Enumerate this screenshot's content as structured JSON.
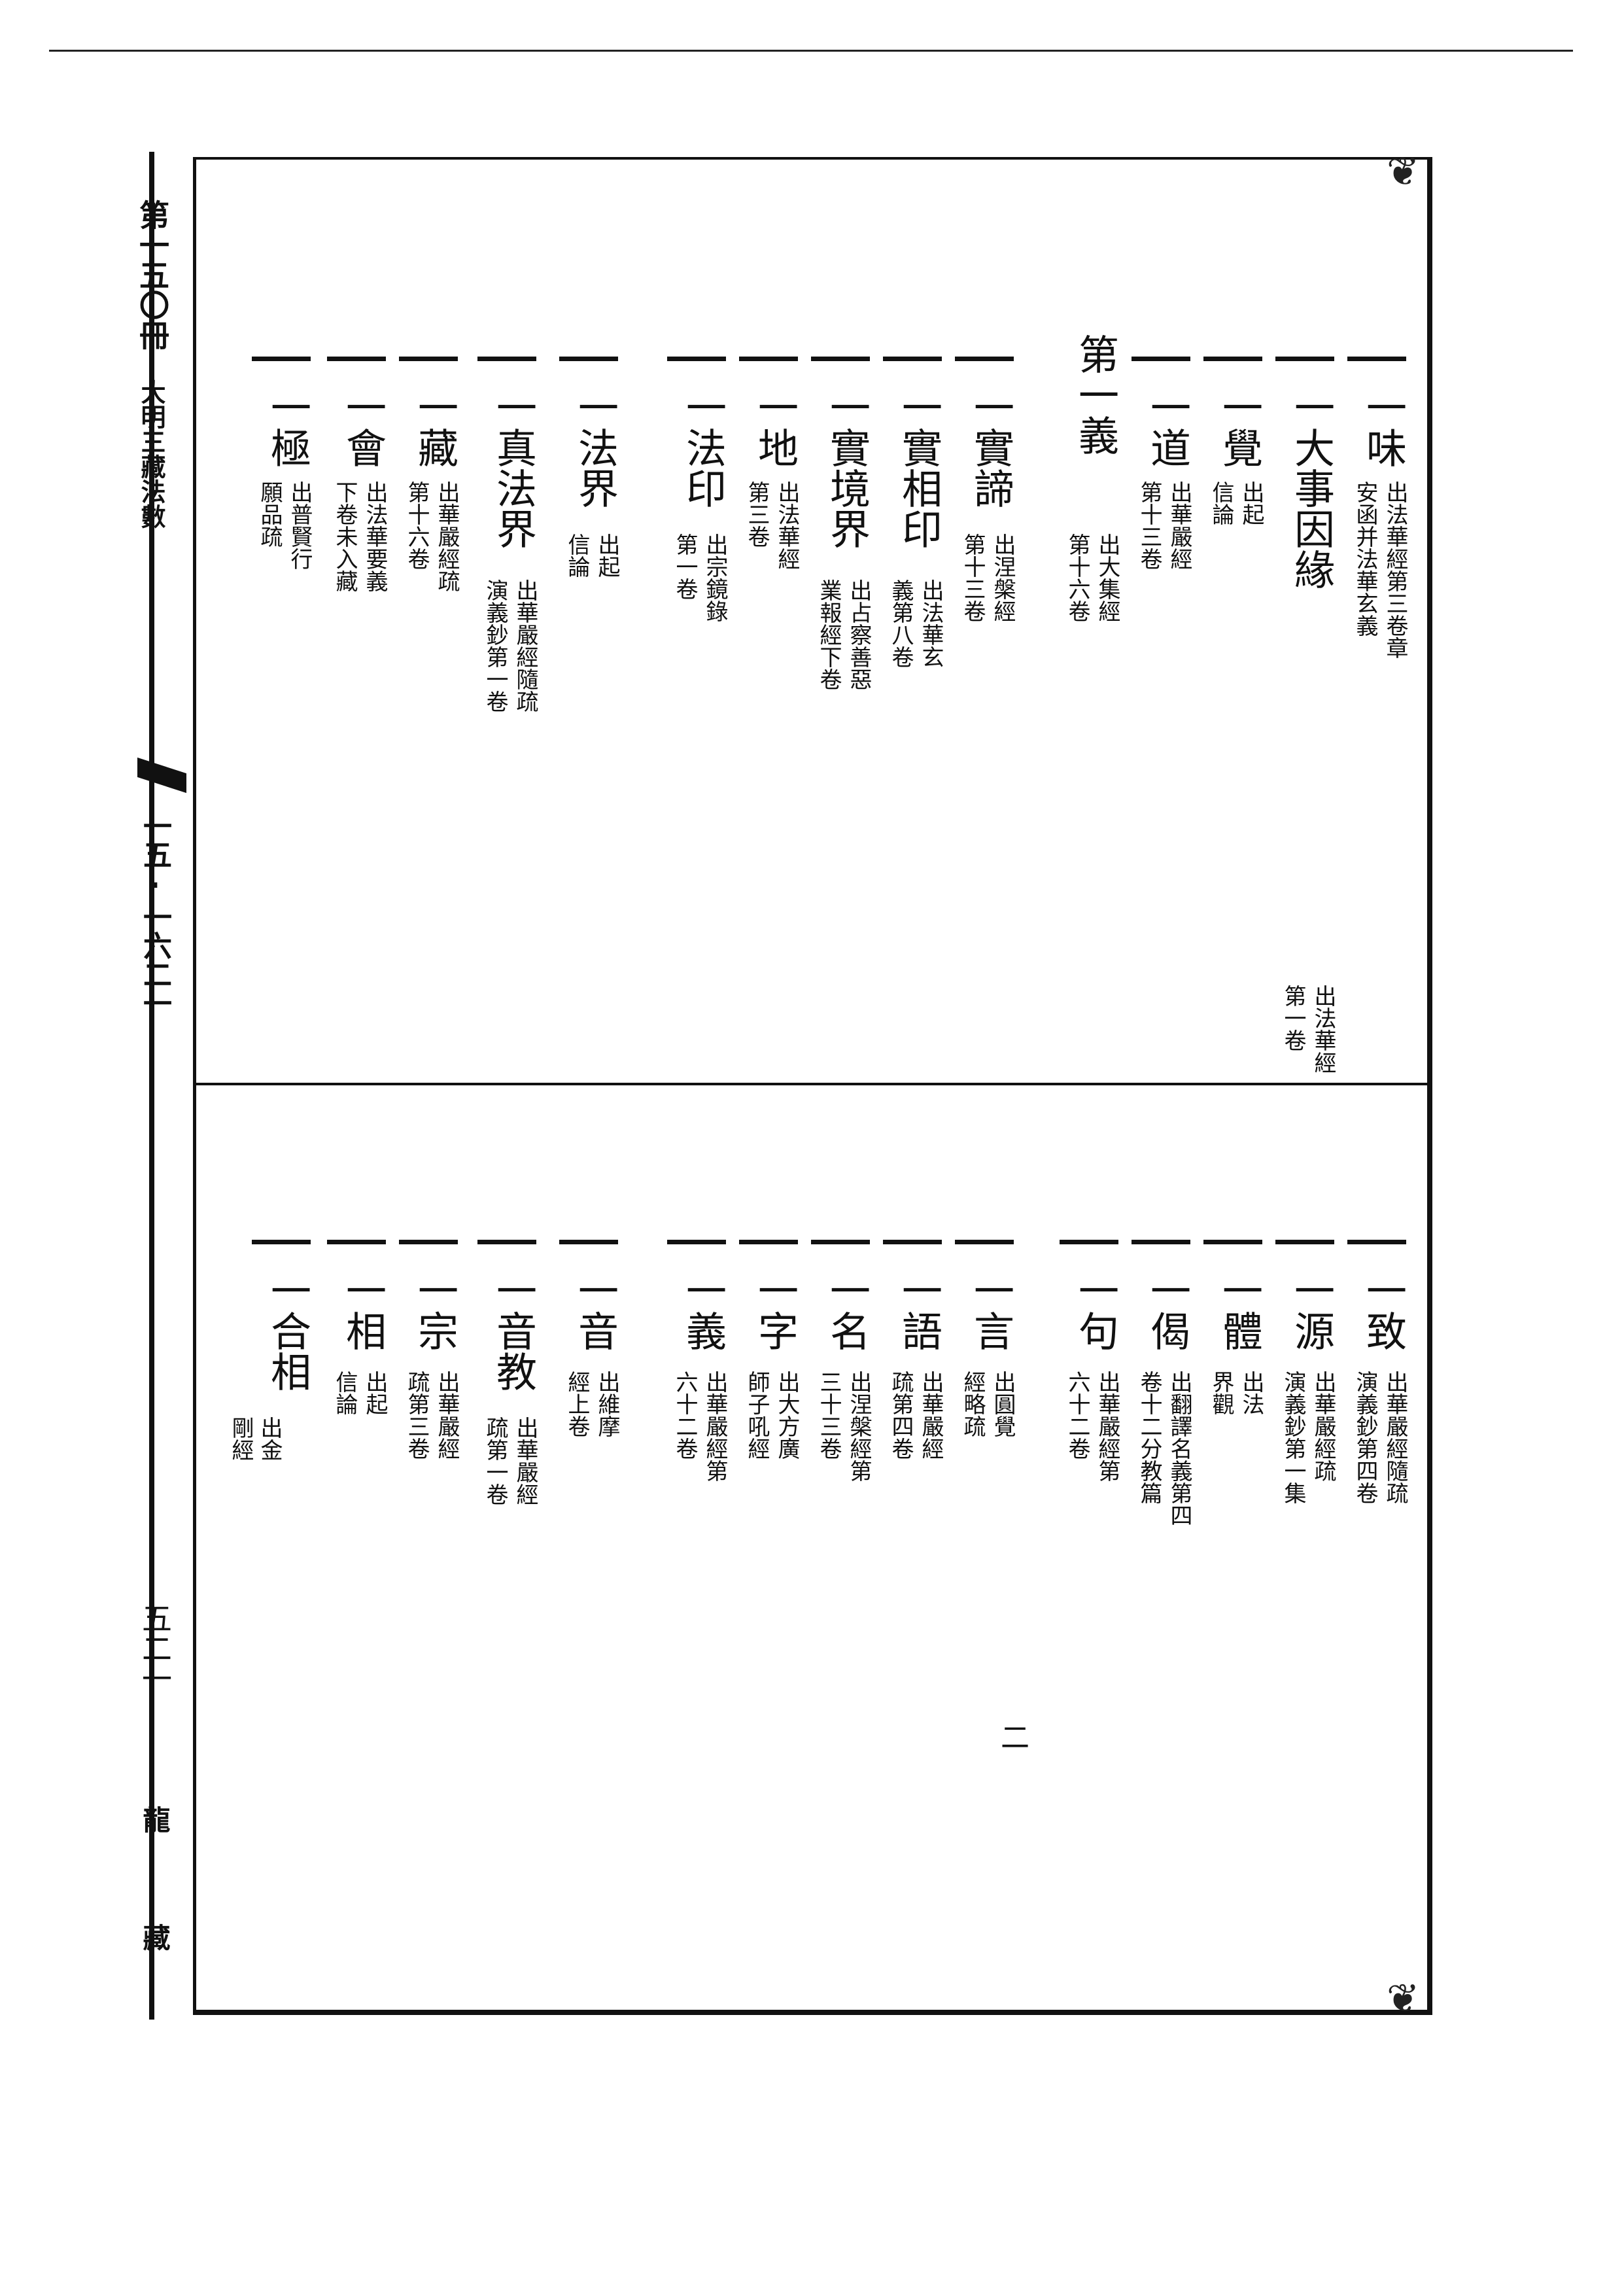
{
  "margin": {
    "volume": "第一五〇冊",
    "title": "大明三藏法數",
    "page_ref": "一五·一六二一",
    "page_number": "五二一",
    "edition_top": "龍",
    "edition_bottom": "藏"
  },
  "footnote_mark": "二",
  "top_section": {
    "entries": [
      {
        "term": "一味",
        "source": [
          "出法華經第三卷章",
          "安函并法華玄義"
        ]
      },
      {
        "term": "一大事因緣",
        "source": [
          "出法華經",
          "第一卷"
        ]
      },
      {
        "term": "一覺",
        "source": [
          "出起",
          "信論"
        ]
      },
      {
        "term": "一道",
        "source": [
          "出華嚴經",
          "第十三卷"
        ]
      },
      {
        "term": "第一義",
        "source": [
          "出大集經",
          "第十六卷"
        ]
      },
      {
        "term": "一實諦",
        "source": [
          "出涅槃經",
          "第十三卷"
        ]
      },
      {
        "term": "一實相印",
        "source": [
          "出法華玄",
          "義第八卷"
        ]
      },
      {
        "term": "一實境界",
        "source": [
          "出占察善惡",
          "業報經下卷"
        ]
      },
      {
        "term": "一地",
        "source": [
          "出法華經",
          "第三卷"
        ]
      },
      {
        "term": "一法印",
        "source": [
          "出宗鏡錄",
          "第一卷"
        ]
      },
      {
        "term": "一法界",
        "source": [
          "出起",
          "信論"
        ]
      },
      {
        "term": "一真法界",
        "source": [
          "出華嚴經隨疏",
          "演義鈔第一卷"
        ]
      },
      {
        "term": "一藏",
        "source": [
          "出華嚴經疏",
          "第十六卷"
        ]
      },
      {
        "term": "一會",
        "source": [
          "出法華要義",
          "下卷未入藏"
        ]
      },
      {
        "term": "一極",
        "source": [
          "出普賢行",
          "願品疏"
        ]
      }
    ]
  },
  "bottom_section": {
    "entries": [
      {
        "term": "一致",
        "source": [
          "出華嚴經隨疏",
          "演義鈔第四卷"
        ]
      },
      {
        "term": "一源",
        "source": [
          "出華嚴經疏",
          "演義鈔第一集"
        ]
      },
      {
        "term": "一體",
        "source": [
          "出法",
          "界觀"
        ]
      },
      {
        "term": "一偈",
        "source": [
          "出翻譯名義第四",
          "卷十二分教篇"
        ]
      },
      {
        "term": "一句",
        "source": [
          "出華嚴經第",
          "六十二卷"
        ]
      },
      {
        "term": "一言",
        "source": [
          "出圓覺",
          "經略疏"
        ]
      },
      {
        "term": "一語",
        "source": [
          "出華嚴經",
          "疏第四卷"
        ]
      },
      {
        "term": "一名",
        "source": [
          "出涅槃經第",
          "三十三卷"
        ]
      },
      {
        "term": "一字",
        "source": [
          "出大方廣",
          "師子吼經"
        ]
      },
      {
        "term": "一義",
        "source": [
          "出華嚴經第",
          "六十二卷"
        ]
      },
      {
        "term": "一音",
        "source": [
          "出維摩",
          "經上卷"
        ]
      },
      {
        "term": "一音教",
        "source": [
          "出華嚴經",
          "疏第一卷"
        ]
      },
      {
        "term": "一宗",
        "source": [
          "出華嚴經",
          "疏第三卷"
        ]
      },
      {
        "term": "一相",
        "source": [
          "出起",
          "信論"
        ]
      },
      {
        "term": "一合相",
        "source": [
          "出金",
          "剛經"
        ]
      }
    ]
  }
}
